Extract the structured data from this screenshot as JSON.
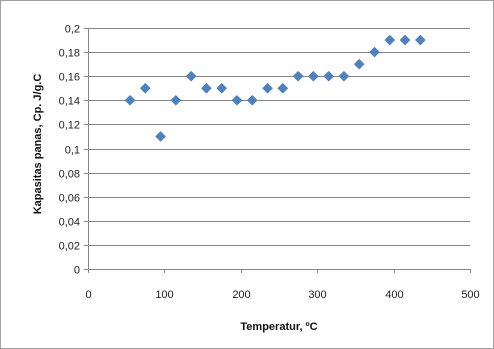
{
  "chart_data": {
    "type": "scatter",
    "xlabel": "Temperatur, ºC",
    "ylabel": "Kapasitas panas, Cp. J/g.C",
    "xlim": [
      0,
      500
    ],
    "ylim": [
      0,
      0.2
    ],
    "x_ticks": [
      0,
      100,
      200,
      300,
      400,
      500
    ],
    "y_ticks": [
      0,
      0.02,
      0.04,
      0.06,
      0.08,
      0.1,
      0.12,
      0.14,
      0.16,
      0.18,
      0.2
    ],
    "x_tick_labels": [
      "0",
      "100",
      "200",
      "300",
      "400",
      "500"
    ],
    "y_tick_labels": [
      "0",
      "0,02",
      "0,04",
      "0,06",
      "0,08",
      "0,1",
      "0,12",
      "0,14",
      "0,16",
      "0,18",
      "0,2"
    ],
    "grid": "horizontal",
    "marker": "diamond",
    "marker_color": "#4F81BD",
    "grid_color": "#868686",
    "series": [
      {
        "points": [
          [
            55,
            0.14
          ],
          [
            75,
            0.15
          ],
          [
            95,
            0.11
          ],
          [
            115,
            0.14
          ],
          [
            135,
            0.16
          ],
          [
            155,
            0.15
          ],
          [
            175,
            0.15
          ],
          [
            195,
            0.14
          ],
          [
            215,
            0.14
          ],
          [
            235,
            0.15
          ],
          [
            255,
            0.15
          ],
          [
            275,
            0.16
          ],
          [
            295,
            0.16
          ],
          [
            315,
            0.16
          ],
          [
            335,
            0.16
          ],
          [
            355,
            0.17
          ],
          [
            375,
            0.18
          ],
          [
            395,
            0.19
          ],
          [
            415,
            0.19
          ],
          [
            435,
            0.19
          ]
        ]
      }
    ]
  }
}
